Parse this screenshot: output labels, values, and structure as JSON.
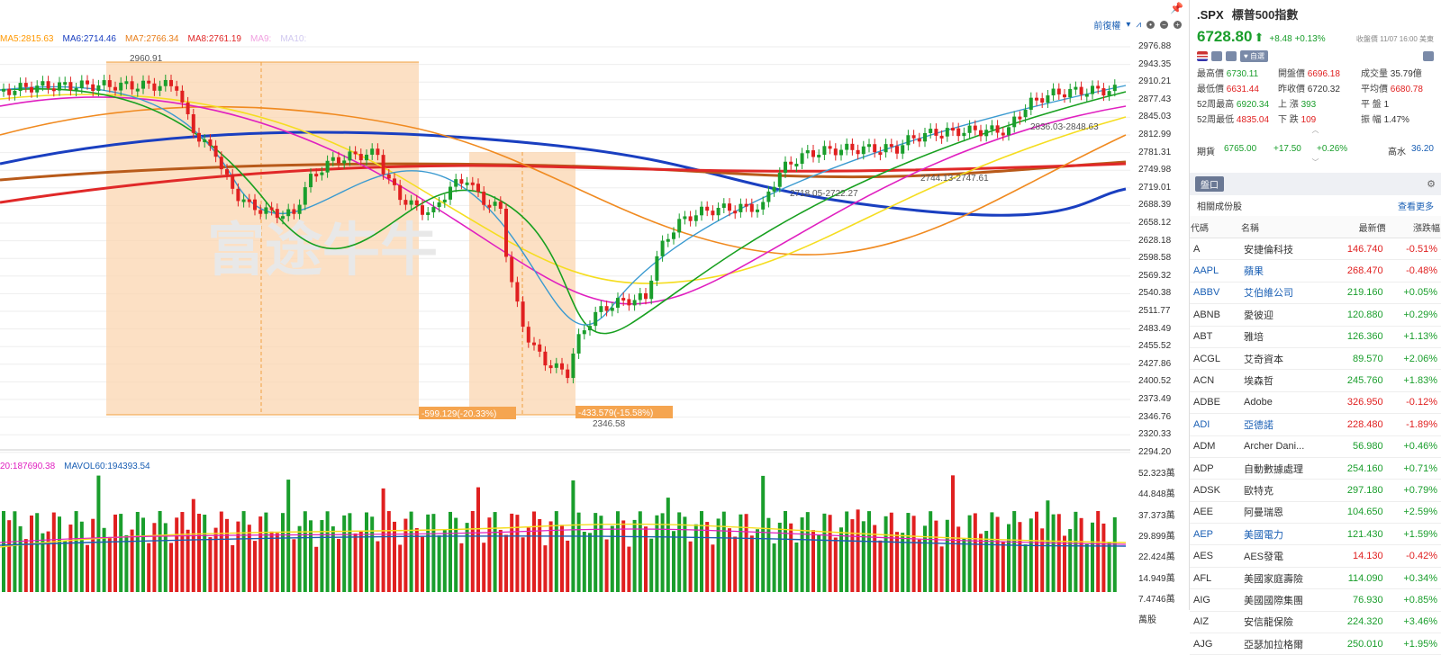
{
  "chart": {
    "ma_legend": [
      {
        "text": "MA5:2815.63",
        "color": "#ff9800"
      },
      {
        "text": "MA6:2714.46",
        "color": "#1a3fc0"
      },
      {
        "text": "MA7:2766.34",
        "color": "#e87e1a"
      },
      {
        "text": "MA8:2761.19",
        "color": "#e02828"
      },
      {
        "text": "MA9:",
        "color": "#f0a0e0"
      },
      {
        "text": "MA10:",
        "color": "#d0c8f0"
      }
    ],
    "vol_legend": [
      {
        "text": "20:187690.38",
        "color": "#e020c0"
      },
      {
        "text": "MAVOL60:194393.54",
        "color": "#1a5fb4"
      }
    ],
    "toolbar_label": "前復權",
    "price_ticks": [
      "2976.88",
      "2943.35",
      "2910.21",
      "2877.43",
      "2845.03",
      "2812.99",
      "2781.31",
      "2749.98",
      "2719.01",
      "2688.39",
      "2658.12",
      "2628.18",
      "2598.58",
      "2569.32",
      "2540.38",
      "2511.77",
      "2483.49",
      "2455.52",
      "2427.86",
      "2400.52",
      "2373.49",
      "2346.76",
      "2320.33",
      "2294.20"
    ],
    "vol_ticks": [
      "52.323萬",
      "44.848萬",
      "37.373萬",
      "29.899萬",
      "22.424萬",
      "14.949萬",
      "7.4746萬",
      "萬股"
    ],
    "annotations": {
      "high_label": "2960.91",
      "low_label": "2346.58",
      "range1": "-599.129(-20.33%)",
      "range2": "-433.579(-15.58%)",
      "level_a": "2718.05-2722.27",
      "level_b": "2744.13-2747.61",
      "level_c": "2836.03-2848.63"
    },
    "watermark": "富途牛牛"
  },
  "quote": {
    "symbol": ".SPX",
    "name": "標普500指數",
    "price": "6728.80",
    "arrow": "⬆",
    "change": "+8.48 +0.13%",
    "close_time": "收盤價 11/07 16:00 美東",
    "tag": "自選",
    "stats": [
      [
        {
          "l": "最高價",
          "v": "6730.11",
          "c": "grn"
        },
        {
          "l": "開盤價",
          "v": "6696.18",
          "c": "red"
        },
        {
          "l": "成交量",
          "v": "35.79億",
          "c": ""
        }
      ],
      [
        {
          "l": "最低價",
          "v": "6631.44",
          "c": "red"
        },
        {
          "l": "昨收價",
          "v": "6720.32",
          "c": ""
        },
        {
          "l": "平均價",
          "v": "6680.78",
          "c": "red"
        }
      ],
      [
        {
          "l": "52周最高",
          "v": "6920.34",
          "c": "grn"
        },
        {
          "l": "上 漲",
          "v": "393",
          "c": "grn"
        },
        {
          "l": "平 盤",
          "v": "1",
          "c": ""
        }
      ],
      [
        {
          "l": "52周最低",
          "v": "4835.04",
          "c": "red"
        },
        {
          "l": "下 跌",
          "v": "109",
          "c": "red"
        },
        {
          "l": "振 幅",
          "v": "1.47%",
          "c": ""
        }
      ]
    ],
    "futures": {
      "label": "期貨",
      "price": "6765.00",
      "chg": "+17.50",
      "pct": "+0.26%",
      "water_label": "高水",
      "water": "36.20"
    }
  },
  "panel": {
    "tab": "盤口",
    "title": "相關成份股",
    "more": "查看更多",
    "columns": [
      "代碼",
      "名稱",
      "最新價",
      "漲跌幅"
    ],
    "rows": [
      {
        "code": "A",
        "name": "安捷倫科技",
        "price": "146.740",
        "pct": "-0.51%",
        "blue": false
      },
      {
        "code": "AAPL",
        "name": "蘋果",
        "price": "268.470",
        "pct": "-0.48%",
        "blue": true
      },
      {
        "code": "ABBV",
        "name": "艾伯維公司",
        "price": "219.160",
        "pct": "+0.05%",
        "blue": true
      },
      {
        "code": "ABNB",
        "name": "愛彼迎",
        "price": "120.880",
        "pct": "+0.29%",
        "blue": false
      },
      {
        "code": "ABT",
        "name": "雅培",
        "price": "126.360",
        "pct": "+1.13%",
        "blue": false
      },
      {
        "code": "ACGL",
        "name": "艾奇資本",
        "price": "89.570",
        "pct": "+2.06%",
        "blue": false
      },
      {
        "code": "ACN",
        "name": "埃森哲",
        "price": "245.760",
        "pct": "+1.83%",
        "blue": false
      },
      {
        "code": "ADBE",
        "name": "Adobe",
        "price": "326.950",
        "pct": "-0.12%",
        "blue": false
      },
      {
        "code": "ADI",
        "name": "亞德諾",
        "price": "228.480",
        "pct": "-1.89%",
        "blue": true
      },
      {
        "code": "ADM",
        "name": "Archer Dani...",
        "price": "56.980",
        "pct": "+0.46%",
        "blue": false
      },
      {
        "code": "ADP",
        "name": "自動數據處理",
        "price": "254.160",
        "pct": "+0.71%",
        "blue": false
      },
      {
        "code": "ADSK",
        "name": "歐特克",
        "price": "297.180",
        "pct": "+0.79%",
        "blue": false
      },
      {
        "code": "AEE",
        "name": "阿曼瑞恩",
        "price": "104.650",
        "pct": "+2.59%",
        "blue": false
      },
      {
        "code": "AEP",
        "name": "美國電力",
        "price": "121.430",
        "pct": "+1.59%",
        "blue": true
      },
      {
        "code": "AES",
        "name": "AES發電",
        "price": "14.130",
        "pct": "-0.42%",
        "blue": false
      },
      {
        "code": "AFL",
        "name": "美國家庭壽險",
        "price": "114.090",
        "pct": "+0.34%",
        "blue": false
      },
      {
        "code": "AIG",
        "name": "美國國際集團",
        "price": "76.930",
        "pct": "+0.85%",
        "blue": false
      },
      {
        "code": "AIZ",
        "name": "安信龍保險",
        "price": "224.320",
        "pct": "+3.46%",
        "blue": false
      },
      {
        "code": "AJG",
        "name": "亞瑟加拉格爾",
        "price": "250.010",
        "pct": "+1.95%",
        "blue": false
      }
    ]
  }
}
